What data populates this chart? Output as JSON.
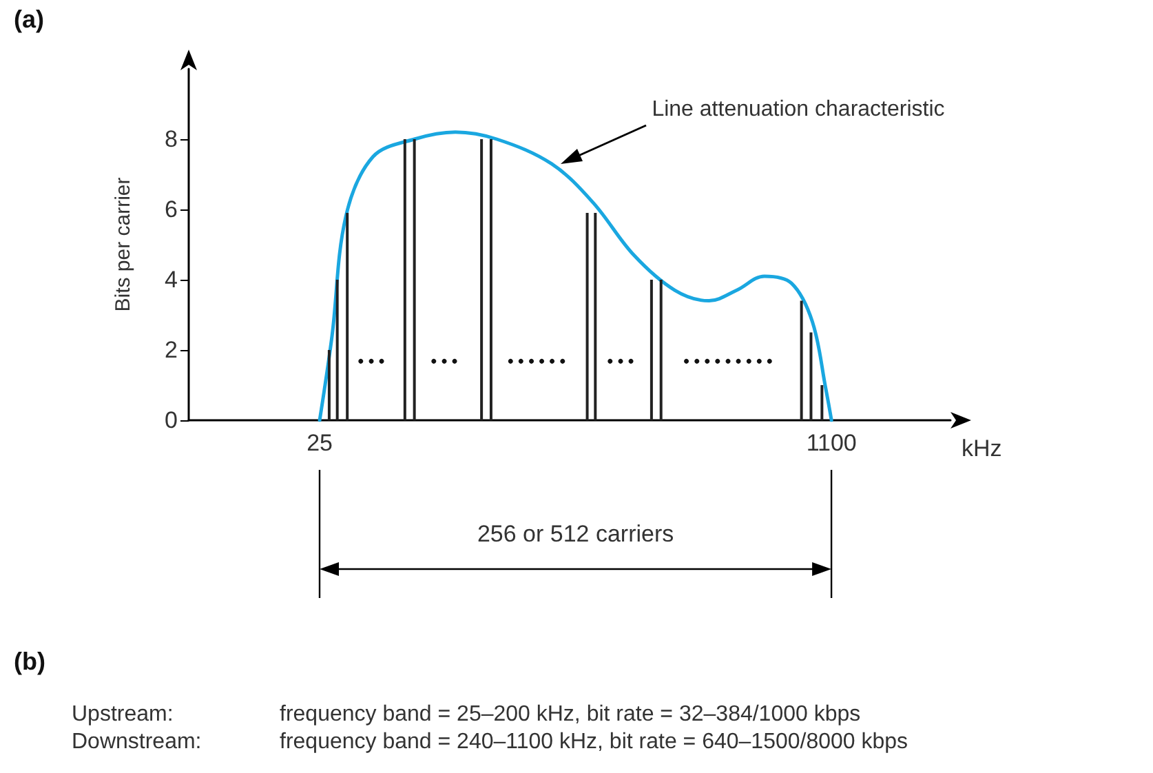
{
  "chart_data": {
    "type": "line",
    "ylabel": "Bits per carrier",
    "xlabel": "kHz",
    "xlim": [
      -250,
      1350
    ],
    "xticks": [
      25,
      1100
    ],
    "ylim": [
      0,
      10
    ],
    "yticks": [
      0,
      2,
      4,
      6,
      8
    ],
    "grid": false,
    "marker": "none",
    "series": [
      {
        "color": "#1aa7e0",
        "x": [
          25,
          51,
          80,
          137,
          224,
          310,
          397,
          512,
          599,
          685,
          771,
          843,
          901,
          959,
          1016,
          1060,
          1088,
          1100
        ],
        "values": [
          0,
          2.4,
          5.8,
          7.5,
          8.0,
          8.2,
          8.0,
          7.3,
          6.2,
          4.7,
          3.7,
          3.4,
          3.7,
          4.1,
          3.9,
          2.8,
          0.9,
          0
        ]
      },
      {
        "type": "bar",
        "color": "#222222",
        "x": [
          45,
          62,
          83,
          204,
          224,
          365,
          385,
          587,
          604,
          722,
          742,
          1037,
          1057,
          1080
        ],
        "values": [
          2,
          4,
          5.9,
          8,
          8,
          8,
          8,
          5.9,
          5.9,
          4,
          4,
          3.4,
          2.5,
          1
        ]
      }
    ],
    "annotations": [
      "(a)",
      {
        "text": "Line attenuation characteristic",
        "x": 526,
        "y": 7.3
      },
      "256 or 512 carriers",
      "•••",
      "•••",
      "••••••",
      "•••",
      "•••••••••",
      "(b)",
      "Upstream:",
      "frequency band = 25–200 kHz, bit rate = 32–384/1000 kbps",
      "Downstream:",
      "frequency band = 240–1100 kHz, bit rate = 640–1500/8000 kbps"
    ]
  }
}
